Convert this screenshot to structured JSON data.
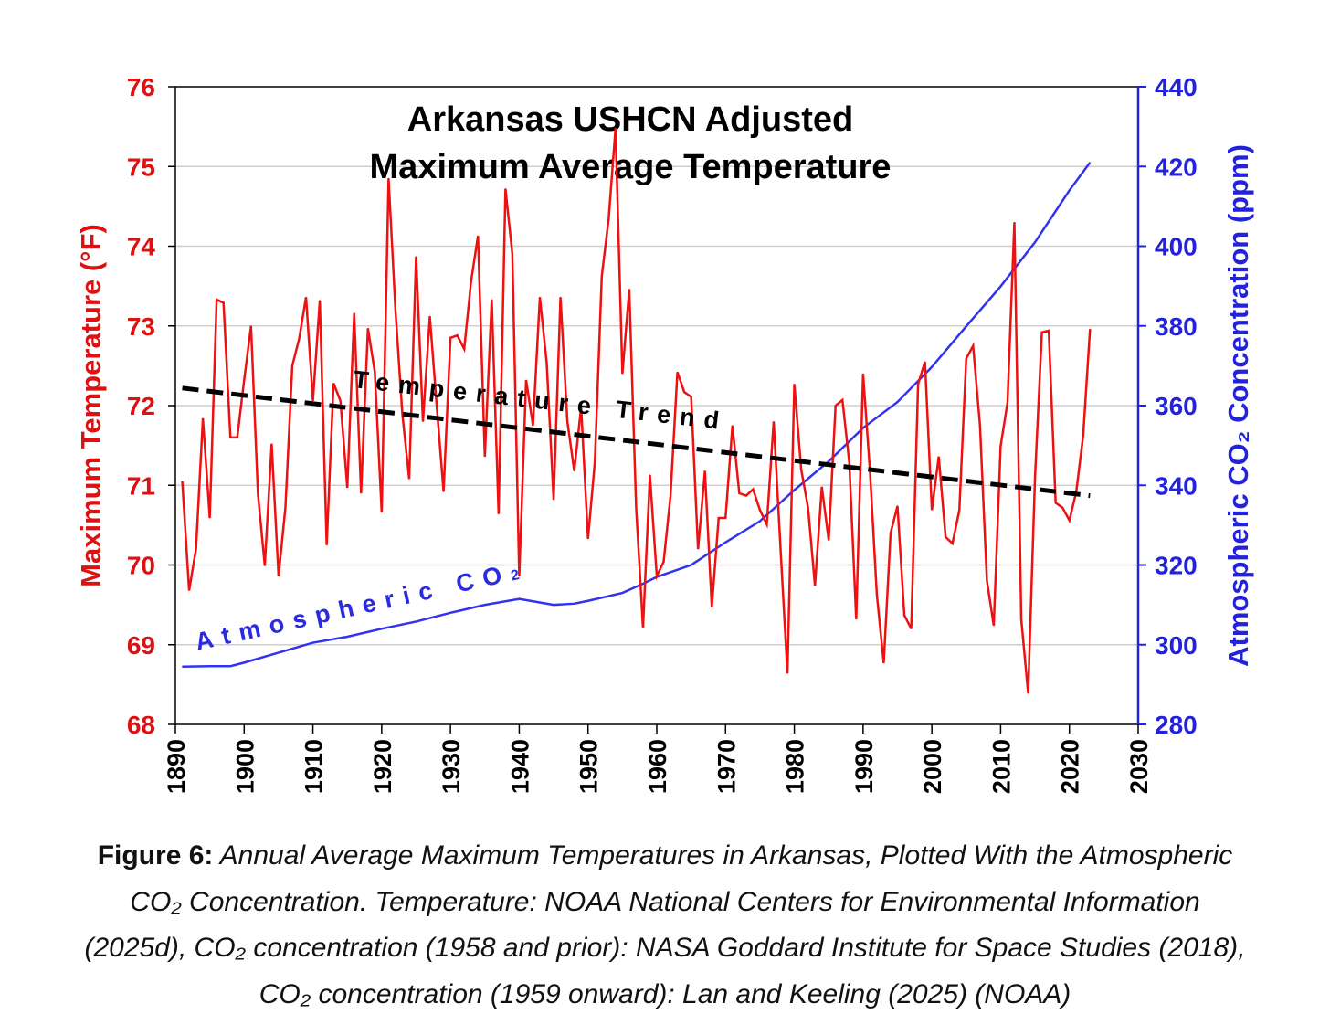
{
  "chart_data": {
    "type": "line",
    "title_lines": [
      "Arkansas USHCN Adjusted",
      "Maximum Average Temperature"
    ],
    "xlabel": "",
    "ylabel_left": "Maximum Temperature (°F)",
    "ylabel_right": "Atmospheric CO₂ Concentration (ppm)",
    "xlim": [
      1890,
      2030
    ],
    "ylim_left": [
      68,
      76
    ],
    "ylim_right": [
      280,
      440
    ],
    "x_ticks": [
      "1890",
      "1900",
      "1910",
      "1920",
      "1930",
      "1940",
      "1950",
      "1960",
      "1970",
      "1980",
      "1990",
      "2000",
      "2010",
      "2020",
      "2030"
    ],
    "y_ticks_left": [
      "68",
      "69",
      "70",
      "71",
      "72",
      "73",
      "74",
      "75",
      "76"
    ],
    "y_ticks_right": [
      "280",
      "300",
      "320",
      "340",
      "360",
      "380",
      "400",
      "420",
      "440"
    ],
    "grid": "horizontal",
    "colors": {
      "temperature": "#ee1111",
      "co2": "#3333ee",
      "trend": "#000000",
      "left_axis": "#dd1111",
      "right_axis": "#2222dd"
    },
    "series": [
      {
        "name": "Temperature",
        "axis": "left",
        "x_start": 1891,
        "values": [
          71.05,
          69.68,
          70.2,
          71.84,
          70.59,
          73.33,
          73.29,
          71.6,
          71.6,
          72.32,
          73.0,
          70.9,
          69.99,
          71.52,
          69.86,
          70.72,
          72.5,
          72.84,
          73.36,
          72.06,
          73.32,
          70.25,
          72.28,
          72.06,
          70.97,
          73.16,
          70.9,
          72.97,
          72.42,
          70.66,
          74.85,
          73.2,
          71.9,
          71.08,
          73.87,
          71.8,
          73.12,
          72.0,
          70.92,
          72.85,
          72.88,
          72.71,
          73.56,
          74.13,
          71.36,
          73.33,
          70.64,
          74.72,
          73.9,
          69.86,
          72.32,
          71.75,
          73.36,
          72.53,
          70.82,
          73.36,
          71.8,
          71.18,
          71.98,
          70.33,
          71.3,
          73.62,
          74.34,
          75.48,
          72.4,
          73.46,
          70.72,
          69.21,
          71.13,
          69.86,
          70.04,
          70.87,
          72.42,
          72.17,
          72.11,
          70.2,
          71.18,
          69.47,
          70.59,
          70.59,
          71.75,
          70.9,
          70.87,
          70.95,
          70.69,
          70.51,
          71.8,
          70.2,
          68.64,
          72.27,
          71.2,
          70.72,
          69.74,
          70.98,
          70.31,
          72.0,
          72.07,
          71.28,
          69.32,
          72.4,
          71.18,
          69.63,
          68.77,
          70.4,
          70.74,
          69.37,
          69.2,
          72.27,
          72.55,
          70.69,
          71.36,
          70.35,
          70.27,
          70.69,
          72.59,
          72.75,
          71.75,
          69.81,
          69.24,
          71.49,
          72.04,
          74.3,
          69.32,
          68.39,
          71.1,
          72.92,
          72.94,
          70.78,
          70.72,
          70.56,
          70.92,
          71.62,
          72.96
        ]
      },
      {
        "name": "Temperature Trend",
        "axis": "left",
        "x": [
          1891,
          2023
        ],
        "values": [
          72.22,
          70.87
        ]
      },
      {
        "name": "Atmospheric CO₂",
        "axis": "right",
        "x": [
          1891,
          1895,
          1898,
          1900,
          1905,
          1910,
          1915,
          1920,
          1925,
          1930,
          1935,
          1940,
          1945,
          1948,
          1950,
          1955,
          1958,
          1960,
          1965,
          1970,
          1975,
          1980,
          1985,
          1990,
          1995,
          2000,
          2005,
          2010,
          2015,
          2020,
          2023
        ],
        "values": [
          294.5,
          294.6,
          294.6,
          295.5,
          298,
          300.5,
          302,
          304,
          305.8,
          308,
          310,
          311.5,
          310,
          310.3,
          311,
          313,
          315.3,
          317,
          320,
          325.7,
          331,
          338.8,
          346,
          354.4,
          360.9,
          369.7,
          379.9,
          389.9,
          401,
          414,
          421
        ]
      }
    ],
    "annotations": {
      "trend_label": "Temperature Trend",
      "co2_label": "Atmospheric CO",
      "co2_sub": "2"
    }
  },
  "caption": {
    "lead": "Figure 6:",
    "line1": "Annual Average Maximum Temperatures in Arkansas, Plotted With the Atmospheric",
    "line2": "CO₂ Concentration. Temperature: NOAA National Centers for Environmental Information",
    "line3": "(2025d), CO₂ concentration (1958 and prior): NASA Goddard Institute for Space Studies (2018),",
    "line4": "CO₂ concentration (1959 onward): Lan and Keeling (2025) (NOAA)"
  }
}
